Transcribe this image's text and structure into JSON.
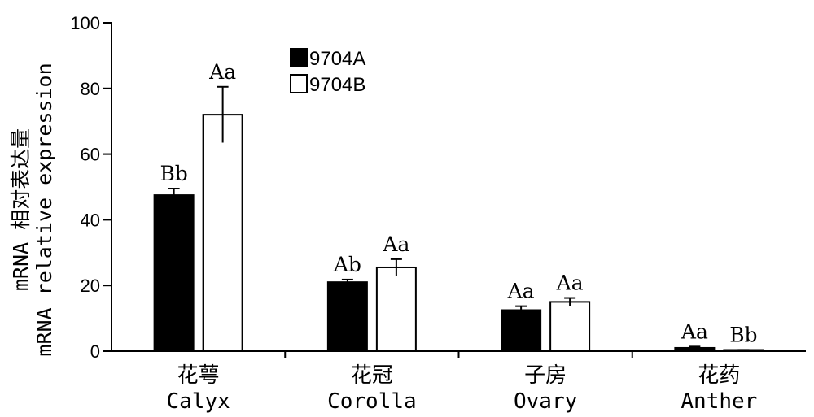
{
  "chart_data": {
    "type": "bar",
    "categories": [
      {
        "zh": "花萼",
        "en": "Calyx"
      },
      {
        "zh": "花冠",
        "en": "Corolla"
      },
      {
        "zh": "子房",
        "en": "Ovary"
      },
      {
        "zh": "花药",
        "en": "Anther"
      }
    ],
    "series": [
      {
        "name": "9704A",
        "color": "#000000",
        "values": [
          47.5,
          21,
          12.5,
          1
        ],
        "errors": [
          2,
          0.8,
          1.2,
          0.4
        ],
        "labels": [
          "Bb",
          "Ab",
          "Aa",
          "Aa"
        ]
      },
      {
        "name": "9704B",
        "color": "#ffffff",
        "values": [
          72,
          25.5,
          15,
          0.3
        ],
        "errors": [
          8.5,
          2.5,
          1.2,
          0.1
        ],
        "labels": [
          "Aa",
          "Aa",
          "Aa",
          "Bb"
        ]
      }
    ],
    "ylabel_zh": "mRNA 相对表达量",
    "ylabel_en": "mRNA relative expression",
    "ylim": [
      0,
      100
    ],
    "yticks": [
      "0",
      "20",
      "40",
      "60",
      "80",
      "100"
    ],
    "grid": false,
    "legend_position": "top-center"
  }
}
